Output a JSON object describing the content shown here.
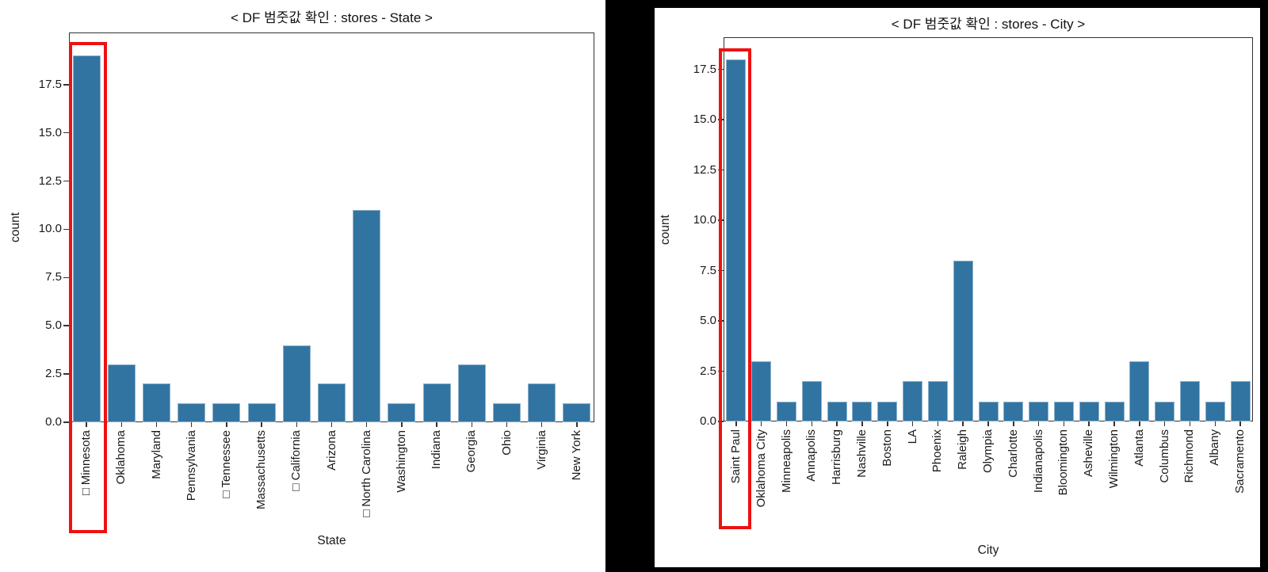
{
  "page": {
    "background_color": "#000000",
    "panel_color": "#ffffff",
    "bar_color": "#3274a1",
    "highlight_color": "#ee1111"
  },
  "chart_data": [
    {
      "type": "bar",
      "title": "< DF 범줏값 확인 : stores - State >",
      "xlabel": "State",
      "ylabel": "count",
      "categories": [
        "□Minnesota",
        "Oklahoma",
        "Maryland",
        "Pennsylvania",
        "□Tennessee",
        "Massachusetts",
        "□California",
        "Arizona",
        "□North Carolina",
        "Washington",
        "Indiana",
        "Georgia",
        "Ohio",
        "Virginia",
        "New York"
      ],
      "values": [
        19,
        3,
        2,
        1,
        1,
        1,
        4,
        2,
        11,
        1,
        2,
        3,
        1,
        2,
        1
      ],
      "ytick_labels": [
        "0.0",
        "2.5",
        "5.0",
        "7.5",
        "10.0",
        "12.5",
        "15.0",
        "17.5"
      ],
      "ytick_values": [
        0,
        2.5,
        5,
        7.5,
        10,
        12.5,
        15,
        17.5
      ],
      "ylim": [
        0,
        20.2
      ],
      "grid": false,
      "legend": null,
      "bar_color": "#3274a1",
      "highlight": {
        "label": "□Minnesota",
        "index": 0,
        "color": "#ee1111",
        "style": "red rectangle around first bar and its tick label"
      }
    },
    {
      "type": "bar",
      "title": "< DF 범줏값 확인 : stores - City >",
      "xlabel": "City",
      "ylabel": "count",
      "categories": [
        "Saint Paul",
        "Oklahoma City",
        "Minneapolis",
        "Annapolis",
        "Harrisburg",
        "Nashville",
        "Boston",
        "LA",
        "Phoenix",
        "Raleigh",
        "Olympia",
        "Charlotte",
        "Indianapolis",
        "Bloomington",
        "Asheville",
        "Wilmington",
        "Atlanta",
        "Columbus",
        "Richmond",
        "Albany",
        "Sacramento"
      ],
      "values": [
        18,
        3,
        1,
        2,
        1,
        1,
        1,
        2,
        2,
        8,
        1,
        1,
        1,
        1,
        1,
        1,
        3,
        1,
        2,
        1,
        2
      ],
      "ytick_labels": [
        "0.0",
        "2.5",
        "5.0",
        "7.5",
        "10.0",
        "12.5",
        "15.0",
        "17.5"
      ],
      "ytick_values": [
        0,
        2.5,
        5,
        7.5,
        10,
        12.5,
        15,
        17.5
      ],
      "ylim": [
        0,
        19.1
      ],
      "grid": false,
      "legend": null,
      "bar_color": "#3274a1",
      "highlight": {
        "label": "Saint Paul",
        "index": 0,
        "color": "#ee1111",
        "style": "red rectangle around first bar and its tick label"
      }
    }
  ]
}
